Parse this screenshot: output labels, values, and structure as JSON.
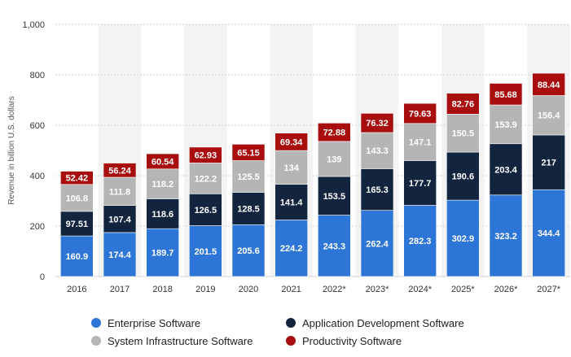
{
  "chart_data": {
    "type": "bar",
    "stacked": true,
    "title": "",
    "xlabel": "",
    "ylabel": "Revenue in billion U.S. dollars",
    "ylim": [
      0,
      1000
    ],
    "yticks": [
      0,
      200,
      400,
      600,
      800,
      1000
    ],
    "ytick_labels": [
      "0",
      "200",
      "400",
      "600",
      "800",
      "1,000"
    ],
    "grid": true,
    "legend_position": "bottom",
    "categories": [
      "2016",
      "2017",
      "2018",
      "2019",
      "2020",
      "2021",
      "2022*",
      "2023*",
      "2024*",
      "2025*",
      "2026*",
      "2027*"
    ],
    "series": [
      {
        "name": "Enterprise Software",
        "color": "#2e75d8",
        "values": [
          160.9,
          174.4,
          189.7,
          201.5,
          205.6,
          224.2,
          243.3,
          262.4,
          282.3,
          302.9,
          323.2,
          344.4
        ],
        "labels": [
          "160.9",
          "174.4",
          "189.7",
          "201.5",
          "205.6",
          "224.2",
          "243.3",
          "262.4",
          "282.3",
          "302.9",
          "323.2",
          "344.4"
        ]
      },
      {
        "name": "Application Development Software",
        "color": "#13253e",
        "values": [
          97.51,
          107.4,
          118.6,
          126.5,
          128.5,
          141.4,
          153.5,
          165.3,
          177.7,
          190.6,
          203.4,
          217
        ],
        "labels": [
          "97.51",
          "107.4",
          "118.6",
          "126.5",
          "128.5",
          "141.4",
          "153.5",
          "165.3",
          "177.7",
          "190.6",
          "203.4",
          "217"
        ]
      },
      {
        "name": "System Infrastructure Software",
        "color": "#b5b5b5",
        "values": [
          106.8,
          111.8,
          118.2,
          122.2,
          125.5,
          134,
          139,
          143.3,
          147.1,
          150.5,
          153.9,
          156.4
        ],
        "labels": [
          "106.8",
          "111.8",
          "118.2",
          "122.2",
          "125.5",
          "134",
          "139",
          "143.3",
          "147.1",
          "150.5",
          "153.9",
          "156.4"
        ]
      },
      {
        "name": "Productivity Software",
        "color": "#a80e0e",
        "values": [
          52.42,
          56.24,
          60.54,
          62.93,
          65.15,
          69.34,
          72.88,
          76.32,
          79.63,
          82.76,
          85.68,
          88.44
        ],
        "labels": [
          "52.42",
          "56.24",
          "60.54",
          "62.93",
          "65.15",
          "69.34",
          "72.88",
          "76.32",
          "79.63",
          "82.76",
          "85.68",
          "88.44"
        ]
      }
    ]
  },
  "legend": {
    "items": [
      {
        "label": "Enterprise Software",
        "color": "#2e75d8"
      },
      {
        "label": "Application Development Software",
        "color": "#13253e"
      },
      {
        "label": "System Infrastructure Software",
        "color": "#b5b5b5"
      },
      {
        "label": "Productivity Software",
        "color": "#a80e0e"
      }
    ]
  },
  "colors": {
    "background": "#ffffff",
    "alt_band": "#f3f3f3",
    "grid": "#d0d0d0",
    "axis_text": "#333333"
  }
}
